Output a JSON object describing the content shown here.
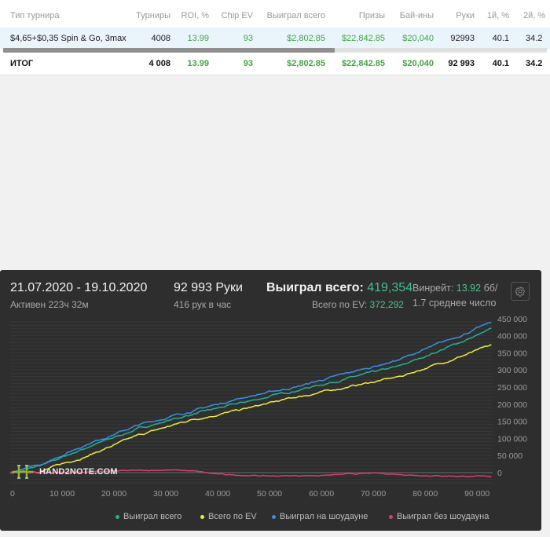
{
  "table": {
    "headers": {
      "type": "Тип турнира",
      "tournaments": "Турниры",
      "roi": "ROI, %",
      "chip_ev": "Chip EV",
      "won_total": "Выиграл всего",
      "prizes": "Призы",
      "buyins": "Бай-ины",
      "hands": "Руки",
      "first_pct": "1й, %",
      "second_pct": "2й, %"
    },
    "row": {
      "type": "$4,65+$0,35 Spin & Go, 3max",
      "tournaments": "4008",
      "roi": "13.99",
      "chip_ev": "93",
      "won_total": "$2,802.85",
      "prizes": "$22,842.85",
      "buyins": "$20,040",
      "hands": "92993",
      "first_pct": "40.1",
      "second_pct": "34.2"
    },
    "total": {
      "label": "ИТОГ",
      "tournaments": "4 008",
      "roi": "13.99",
      "chip_ev": "93",
      "won_total": "$2,802.85",
      "prizes": "$22,842.85",
      "buyins": "$20,040",
      "hands": "92 993",
      "first_pct": "40.1",
      "second_pct": "34.2"
    }
  },
  "graph_header": {
    "date_range": "21.07.2020 - 19.10.2020",
    "active": "Активен 223ч 32м",
    "hands": "92 993 Руки",
    "hands_per_hour": "416 рук в час",
    "won_label": "Выиграл всего:",
    "won_value": "419,354",
    "ev_label": "Всего по EV:",
    "ev_value": "372,292",
    "winrate_label": "Винрейт:",
    "winrate_value": "13.92",
    "winrate_unit": "бб/",
    "avg": "1.7 среднее число"
  },
  "watermark": "HAND2NOTE.COM",
  "colors": {
    "won_total": "#23b08f",
    "ev": "#ecec3a",
    "showdown": "#3b8ee0",
    "non_showdown": "#d0416e"
  },
  "chart_data": {
    "type": "line",
    "x_ticks": [
      "0",
      "10 000",
      "20 000",
      "30 000",
      "40 000",
      "50 000",
      "60 000",
      "70 000",
      "80 000",
      "90 000"
    ],
    "y_ticks": [
      "450 000",
      "400 000",
      "350 000",
      "300 000",
      "250 000",
      "200 000",
      "150 000",
      "100 000",
      "50 000",
      "0"
    ],
    "xlim": [
      0,
      93000
    ],
    "ylim": [
      -30000,
      460000
    ],
    "series": [
      {
        "name": "Выиграл всего",
        "color": "#23b08f",
        "x": [
          0,
          6000,
          15000,
          25000,
          35000,
          45000,
          55000,
          65000,
          75000,
          85000,
          92993
        ],
        "y": [
          0,
          20000,
          75000,
          130000,
          170000,
          205000,
          240000,
          275000,
          310000,
          370000,
          419354
        ]
      },
      {
        "name": "Всего по EV",
        "color": "#ecec3a",
        "x": [
          0,
          6000,
          15000,
          25000,
          35000,
          45000,
          55000,
          65000,
          75000,
          85000,
          92993
        ],
        "y": [
          0,
          5000,
          50000,
          110000,
          155000,
          185000,
          220000,
          250000,
          280000,
          330000,
          372292
        ]
      },
      {
        "name": "Выиграл на шоудауне",
        "color": "#3b8ee0",
        "x": [
          0,
          6000,
          15000,
          25000,
          35000,
          45000,
          55000,
          65000,
          75000,
          85000,
          92993
        ],
        "y": [
          0,
          25000,
          85000,
          140000,
          180000,
          220000,
          250000,
          290000,
          330000,
          390000,
          440000
        ]
      },
      {
        "name": "Выиграл без шоудауна",
        "color": "#d0416e",
        "x": [
          0,
          15000,
          25000,
          30000,
          35000,
          40000,
          50000,
          60000,
          70000,
          80000,
          92993
        ],
        "y": [
          0,
          2000,
          6000,
          8000,
          5000,
          -5000,
          -10000,
          -8000,
          -2000,
          -8000,
          -12000
        ]
      }
    ]
  }
}
